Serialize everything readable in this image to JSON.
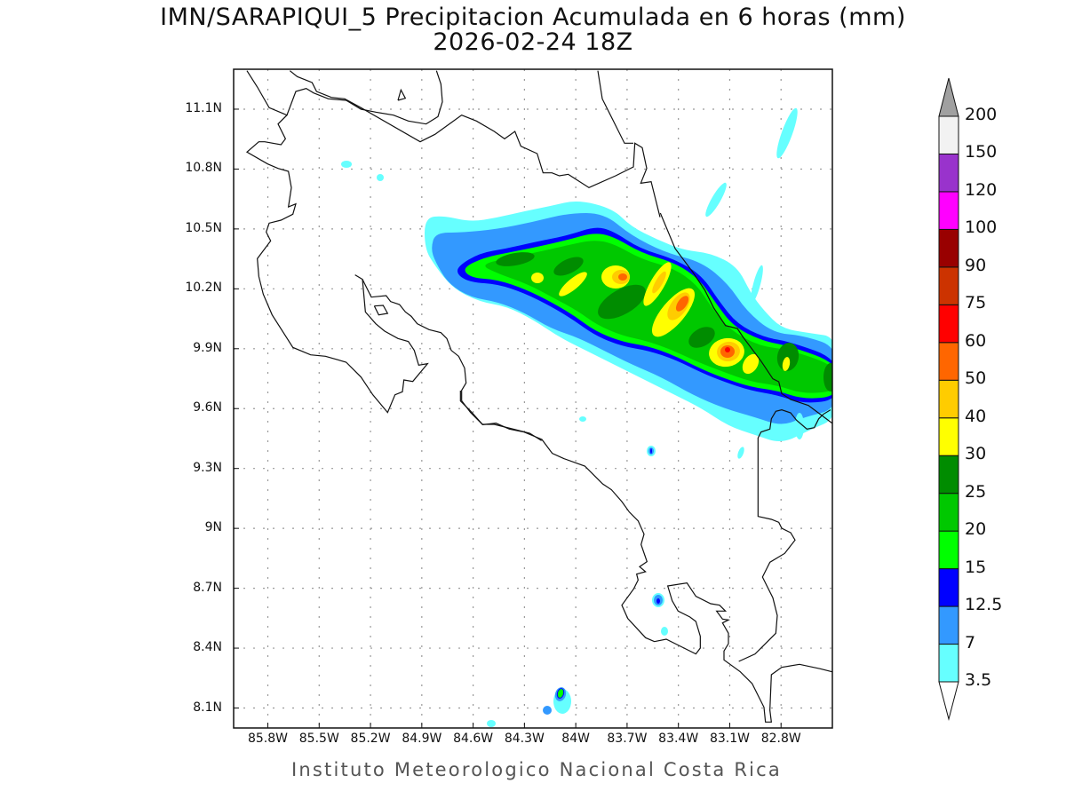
{
  "title": {
    "line1": "IMN/SARAPIQUI_5 Precipitacion Acumulada en 6 horas (mm)",
    "line2": "2026-02-24 18Z"
  },
  "footer": "Instituto Meteorologico Nacional Costa Rica",
  "map": {
    "lon_range": [
      -86.0,
      -82.5
    ],
    "lat_range": [
      8.0,
      11.3
    ],
    "grid": "dotted",
    "lat_labels": [
      "11.1N",
      "10.8N",
      "10.5N",
      "10.2N",
      "9.9N",
      "9.6N",
      "9.3N",
      "9N",
      "8.7N",
      "8.4N",
      "8.1N"
    ],
    "lat_values": [
      11.1,
      10.8,
      10.5,
      10.2,
      9.9,
      9.6,
      9.3,
      9.0,
      8.7,
      8.4,
      8.1
    ],
    "lon_labels": [
      "85.8W",
      "85.5W",
      "85.2W",
      "84.9W",
      "84.6W",
      "84.3W",
      "84W",
      "83.7W",
      "83.4W",
      "83.1W",
      "82.8W"
    ],
    "lon_values": [
      -85.8,
      -85.5,
      -85.2,
      -84.9,
      -84.6,
      -84.3,
      -84.0,
      -83.7,
      -83.4,
      -83.1,
      -82.8
    ]
  },
  "colorbar": {
    "labels": [
      "200",
      "150",
      "120",
      "100",
      "90",
      "75",
      "60",
      "50",
      "40",
      "30",
      "25",
      "20",
      "15",
      "12.5",
      "7",
      "3.5"
    ],
    "levels": [
      3.5,
      7,
      12.5,
      15,
      20,
      25,
      30,
      40,
      50,
      60,
      75,
      90,
      100,
      120,
      150,
      200
    ],
    "colors": [
      "#66ffff",
      "#3399ff",
      "#0000ff",
      "#00ff00",
      "#00c800",
      "#008c00",
      "#ffff00",
      "#ffcc00",
      "#ff6600",
      "#ff0000",
      "#cc3300",
      "#990000",
      "#ff00ff",
      "#9933cc",
      "#f2f2f2"
    ],
    "over_color": "#a0a0a0",
    "under_color": "#ffffff"
  }
}
